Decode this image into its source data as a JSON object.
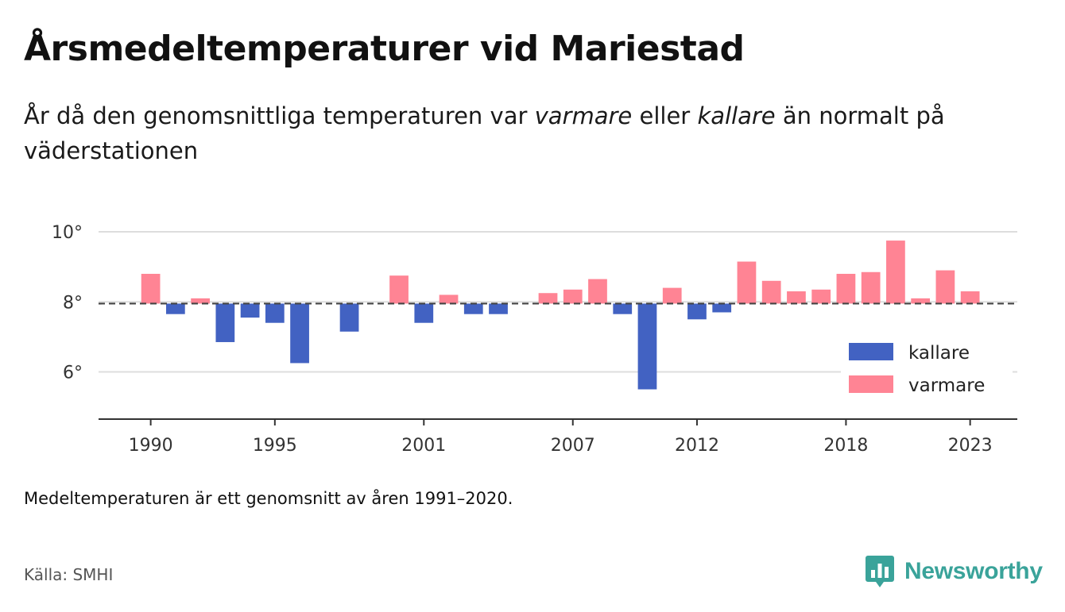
{
  "title": "Årsmedeltemperaturer vid Mariestad",
  "subtitle": {
    "part1": "År då den genomsnittliga temperaturen var ",
    "warmer": "varmare",
    "part2": " eller ",
    "colder": "kallare",
    "part3": " än normalt på väderstationen"
  },
  "footnote": "Medeltemperaturen är ett genomsnitt av åren 1991–2020.",
  "source": "Källa: SMHI",
  "brand": {
    "name": "Newsworthy",
    "icon": "newsworthy-logo-icon",
    "color": "#3aa39a"
  },
  "chart_data": {
    "type": "bar",
    "x": [
      1990,
      1991,
      1992,
      1993,
      1994,
      1995,
      1996,
      1997,
      1998,
      1999,
      2000,
      2001,
      2002,
      2003,
      2004,
      2005,
      2006,
      2007,
      2008,
      2009,
      2010,
      2011,
      2012,
      2013,
      2014,
      2015,
      2016,
      2017,
      2018,
      2019,
      2020,
      2021,
      2022,
      2023
    ],
    "values": [
      8.8,
      7.65,
      8.1,
      6.85,
      7.55,
      7.4,
      6.25,
      null,
      7.15,
      null,
      8.75,
      7.4,
      8.2,
      7.65,
      7.65,
      null,
      8.25,
      8.35,
      8.65,
      7.65,
      5.5,
      8.4,
      7.5,
      7.7,
      9.15,
      8.6,
      8.3,
      8.35,
      8.8,
      8.85,
      9.75,
      8.1,
      8.9,
      8.3
    ],
    "baseline": 7.95,
    "x_ticks": [
      1990,
      1995,
      2001,
      2007,
      2012,
      2018,
      2023
    ],
    "y_ticks": [
      {
        "value": 6,
        "label": "6°"
      },
      {
        "value": 8,
        "label": "8°"
      },
      {
        "value": 10,
        "label": "10°"
      }
    ],
    "ylim": [
      4.65,
      10.5
    ],
    "xlim": [
      1987.9,
      2024.9
    ],
    "grid": true,
    "legend": {
      "position": "right",
      "items": [
        {
          "label": "kallare",
          "color": "#4262c2"
        },
        {
          "label": "varmare",
          "color": "#ff8494"
        }
      ]
    },
    "colors": {
      "colder": "#4262c2",
      "warmer": "#ff8494",
      "baseline": "#444444",
      "grid": "#dddddd",
      "axis": "#333333"
    }
  }
}
